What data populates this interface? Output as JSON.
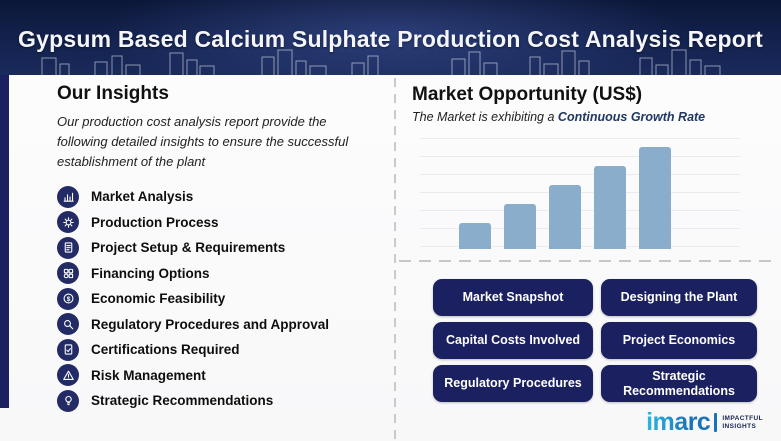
{
  "header": {
    "title": "Gypsum Based Calcium Sulphate Production Cost Analysis Report"
  },
  "insights": {
    "title": "Our Insights",
    "description": "Our production cost analysis report provide the following detailed insights to ensure the successful establishment of the plant",
    "items": [
      {
        "label": "Market Analysis",
        "icon": "market-analysis-icon"
      },
      {
        "label": "Production Process",
        "icon": "production-process-icon"
      },
      {
        "label": "Project Setup & Requirements",
        "icon": "project-setup-icon"
      },
      {
        "label": "Financing Options",
        "icon": "financing-options-icon"
      },
      {
        "label": "Economic Feasibility",
        "icon": "economic-feasibility-icon"
      },
      {
        "label": "Regulatory Procedures and Approval",
        "icon": "regulatory-procedures-icon"
      },
      {
        "label": "Certifications Required",
        "icon": "certifications-icon"
      },
      {
        "label": "Risk Management",
        "icon": "risk-management-icon"
      },
      {
        "label": "Strategic Recommendations",
        "icon": "strategic-recommendations-icon"
      }
    ]
  },
  "market": {
    "title": "Market Opportunity (US$)",
    "subtitle_prefix": "The Market is exhibiting a",
    "subtitle_highlight": "Continuous Growth Rate",
    "buttons": [
      "Market Snapshot",
      "Designing the Plant",
      "Capital Costs Involved",
      "Project Economics",
      "Regulatory Procedures",
      "Strategic Recommendations"
    ]
  },
  "chart_data": {
    "type": "bar",
    "categories": [
      "",
      "",
      "",
      "",
      ""
    ],
    "values": [
      25,
      44,
      63,
      81,
      100
    ],
    "title": "Market Opportunity (US$)",
    "xlabel": "",
    "ylabel": "",
    "ylim": [
      0,
      100
    ],
    "legend": false,
    "gridlines": true,
    "bar_color": "#8badcc"
  },
  "logo": {
    "brand": "imarc",
    "tagline_line1": "IMPACTFUL",
    "tagline_line2": "INSIGHTS"
  },
  "colors": {
    "header_navy": "#13224e",
    "accent_navy": "#1b2160",
    "bar_blue": "#8badcc",
    "highlight_text": "#1f3864",
    "logo_blue": "#1a72b8",
    "logo_teal": "#2cb9dc"
  }
}
